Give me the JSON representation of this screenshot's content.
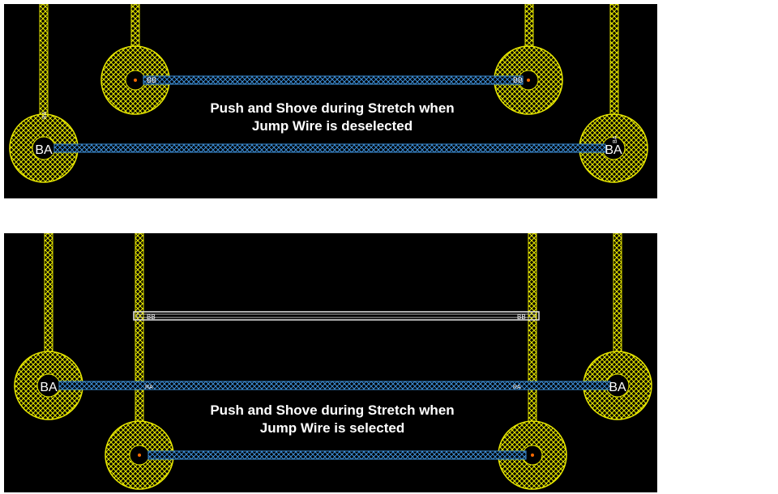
{
  "panels": [
    {
      "caption_line1": "Push and Shove during Stretch when",
      "caption_line2": "Jump Wire is deselected",
      "pad_label_large": "BA",
      "pad_label_small": "BB",
      "trace_tag": "BA"
    },
    {
      "caption_line1": "Push and Shove during Stretch when",
      "caption_line2": "Jump Wire is selected",
      "pad_label_large": "BA",
      "pad_label_small": "BB",
      "trace_tag": "RA"
    }
  ],
  "colors": {
    "background": "#000000",
    "pad_yellow": "#e6e600",
    "trace_blue": "#3d8fd9",
    "jump_wire_white": "#e8e8e8",
    "text": "#ffffff"
  }
}
